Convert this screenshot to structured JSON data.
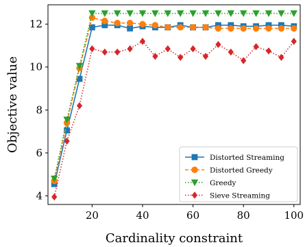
{
  "chart_data": {
    "type": "line",
    "title": "",
    "xlabel": "Cardinality constraint",
    "ylabel": "Objective value",
    "xlim": [
      2.5,
      102.5
    ],
    "ylim": [
      3.6,
      12.9
    ],
    "xticks": [
      20,
      40,
      60,
      80,
      100
    ],
    "yticks": [
      4,
      6,
      8,
      10,
      12
    ],
    "grid": false,
    "legend_position": "lower-right",
    "x": [
      5,
      10,
      15,
      20,
      25,
      30,
      35,
      40,
      45,
      50,
      55,
      60,
      65,
      70,
      75,
      80,
      85,
      90,
      95,
      100
    ],
    "series": [
      {
        "name": "Distorted Streaming",
        "color": "#1f77b4",
        "marker": "square",
        "linestyle": "solid",
        "values": [
          4.55,
          7.05,
          9.45,
          11.85,
          11.95,
          11.95,
          11.8,
          11.9,
          11.85,
          11.85,
          11.95,
          11.85,
          11.85,
          11.95,
          11.95,
          11.9,
          11.9,
          11.95,
          11.95,
          11.9
        ]
      },
      {
        "name": "Distorted Greedy",
        "color": "#ff7f0e",
        "marker": "circle",
        "linestyle": "dashed",
        "values": [
          4.7,
          7.4,
          9.95,
          12.3,
          12.15,
          12.05,
          12.05,
          12.0,
          11.95,
          11.85,
          11.85,
          11.85,
          11.85,
          11.8,
          11.8,
          11.8,
          11.8,
          11.8,
          11.8,
          11.8
        ]
      },
      {
        "name": "Greedy",
        "color": "#2ca02c",
        "marker": "triangle-down",
        "linestyle": "dotted",
        "values": [
          4.8,
          7.55,
          10.05,
          12.5,
          12.5,
          12.5,
          12.5,
          12.5,
          12.5,
          12.5,
          12.5,
          12.5,
          12.5,
          12.5,
          12.5,
          12.5,
          12.5,
          12.5,
          12.5,
          12.5
        ]
      },
      {
        "name": "Sieve Streaming",
        "color": "#d62728",
        "marker": "diamond",
        "linestyle": "dotted",
        "values": [
          3.95,
          6.55,
          8.2,
          10.85,
          10.7,
          10.7,
          10.85,
          11.2,
          10.5,
          10.85,
          10.45,
          10.85,
          10.5,
          11.05,
          10.7,
          10.3,
          10.95,
          10.75,
          10.45,
          11.2
        ]
      }
    ]
  }
}
